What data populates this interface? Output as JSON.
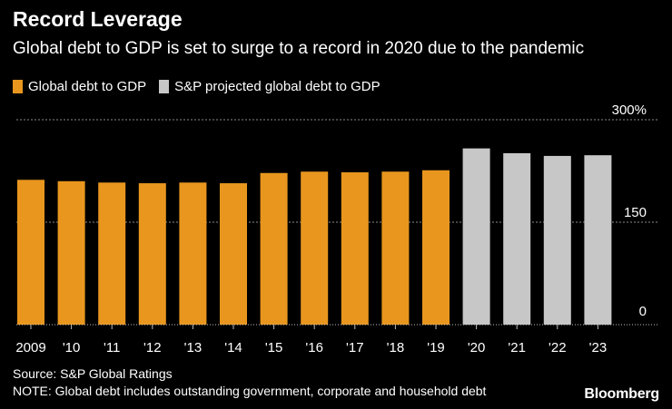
{
  "header": {
    "title": "Record Leverage",
    "subtitle": "Global debt to GDP is set to surge to a record in 2020 due to the pandemic"
  },
  "legend": [
    {
      "label": "Global debt to GDP",
      "color": "#e8961e"
    },
    {
      "label": "S&P projected global debt to GDP",
      "color": "#c7c7c7"
    }
  ],
  "footer": {
    "source": "Source: S&P Global Ratings",
    "note": "NOTE: Global debt includes outstanding government, corporate and household debt",
    "brand": "Bloomberg"
  },
  "chart_data": {
    "type": "bar",
    "title": "Record Leverage",
    "subtitle": "Global debt to GDP is set to surge to a record in 2020 due to the pandemic",
    "categories": [
      "2009",
      "'10",
      "'11",
      "'12",
      "'13",
      "'14",
      "'15",
      "'16",
      "'17",
      "'18",
      "'19",
      "'20",
      "'21",
      "'22",
      "'23"
    ],
    "series": [
      {
        "name": "Global debt to GDP",
        "color": "#e8961e",
        "values": [
          212,
          210,
          208,
          207,
          208,
          207,
          222,
          224,
          223,
          224,
          226,
          null,
          null,
          null,
          null
        ]
      },
      {
        "name": "S&P projected global debt to GDP",
        "color": "#c7c7c7",
        "values": [
          null,
          null,
          null,
          null,
          null,
          null,
          null,
          null,
          null,
          null,
          null,
          258,
          251,
          247,
          248
        ]
      }
    ],
    "xlabel": "",
    "ylabel": "",
    "ylim": [
      0,
      300
    ],
    "yticks": [
      0,
      150,
      300
    ],
    "ytick_labels": [
      "0",
      "150",
      "300%"
    ],
    "grid": true,
    "legend_position": "top-left"
  }
}
